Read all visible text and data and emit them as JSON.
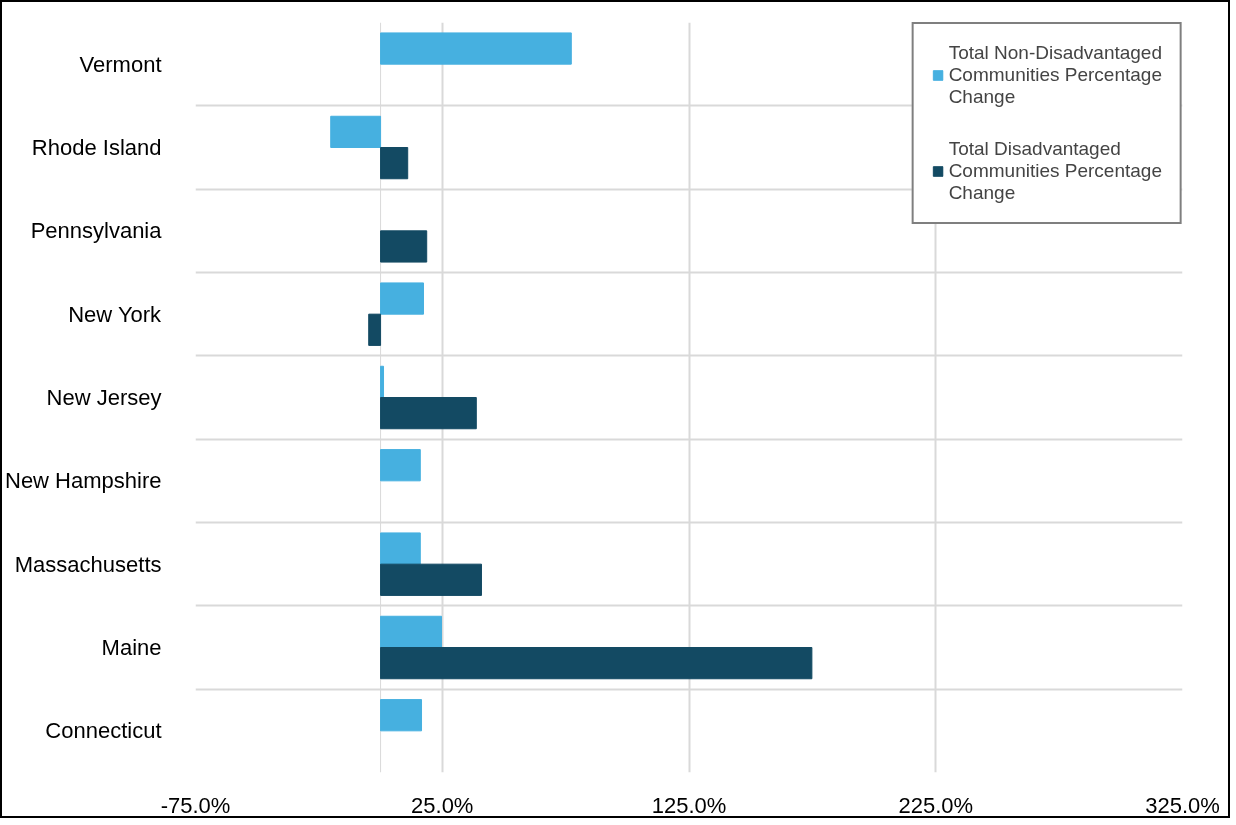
{
  "chart_data": {
    "type": "bar",
    "orientation": "horizontal",
    "categories": [
      "Vermont",
      "Rhode Island",
      "Pennsylvania",
      "New York",
      "New Jersey",
      "New Hampshire",
      "Massachusetts",
      "Maine",
      "Connecticut"
    ],
    "series": [
      {
        "name": "Total Non-Disadvantaged Communities Percentage Change",
        "color": "#46b0e0",
        "values": [
          77.3,
          -20.2,
          null,
          17.4,
          1.2,
          16.1,
          16.1,
          24.7,
          16.6
        ]
      },
      {
        "name": "Total Disadvantaged Communities Percentage Change",
        "color": "#134a63",
        "values": [
          null,
          11.0,
          18.7,
          -4.8,
          38.8,
          null,
          40.9,
          174.8,
          null
        ]
      }
    ],
    "xlim": [
      -75,
      325
    ],
    "xticks": [
      {
        "value": -75,
        "label": "-75.0%"
      },
      {
        "value": 25,
        "label": "25.0%"
      },
      {
        "value": 125,
        "label": "125.0%"
      },
      {
        "value": 225,
        "label": "225.0%"
      },
      {
        "value": 325,
        "label": "325.0%"
      }
    ],
    "ref_lines": [
      {
        "axis": "x",
        "value": 0,
        "label": null,
        "color": "#d9d9d9"
      }
    ],
    "grid": true,
    "legend": "top right"
  }
}
